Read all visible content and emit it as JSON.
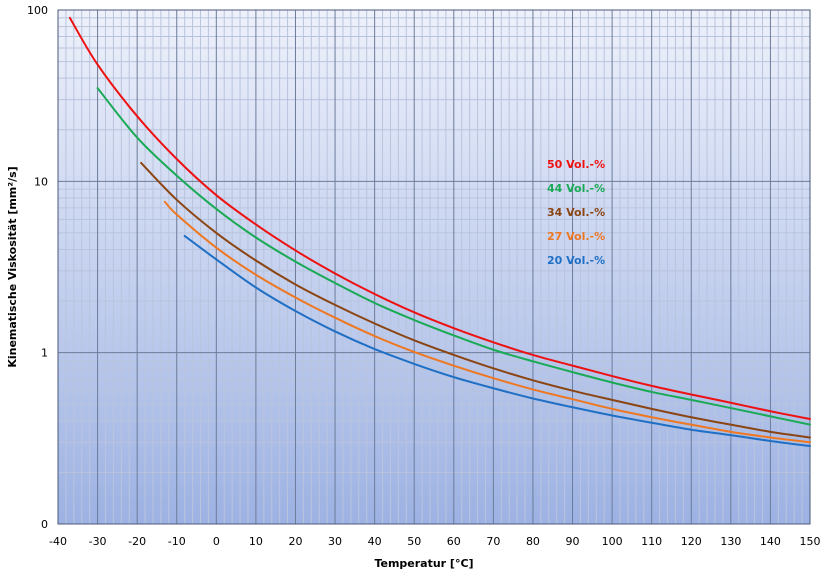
{
  "chart_data": {
    "type": "line",
    "title": "",
    "xlabel": "Temperatur [°C]",
    "ylabel": "Kinematische Viskosität [mm²/s]",
    "yscale": "log",
    "xlim": [
      -40,
      150
    ],
    "ylim": [
      0.1,
      100
    ],
    "x_ticks": [
      -40,
      -30,
      -20,
      -10,
      0,
      10,
      20,
      30,
      40,
      50,
      60,
      70,
      80,
      90,
      100,
      110,
      120,
      130,
      140,
      150
    ],
    "x_tick_labels": [
      "-40",
      "-30",
      "-20",
      "-10",
      "0",
      "10",
      "20",
      "30",
      "40",
      "50",
      "60",
      "70",
      "80",
      "90",
      "100",
      "110",
      "120",
      "130",
      "140",
      "150"
    ],
    "y_ticks": [
      0.1,
      1,
      10,
      100
    ],
    "y_tick_labels": [
      "0",
      "1",
      "10",
      "100"
    ],
    "grid": true,
    "legend_position": "right-center (inline labels)",
    "series": [
      {
        "name": "50 Vol.-%",
        "color": "#ee1111",
        "x": [
          -37,
          -30,
          -20,
          -10,
          0,
          10,
          20,
          30,
          40,
          50,
          60,
          70,
          80,
          90,
          100,
          110,
          120,
          130,
          140,
          150
        ],
        "y": [
          90,
          48,
          24,
          13.5,
          8.3,
          5.6,
          3.95,
          2.9,
          2.2,
          1.72,
          1.39,
          1.15,
          0.97,
          0.84,
          0.73,
          0.64,
          0.57,
          0.51,
          0.455,
          0.41
        ]
      },
      {
        "name": "44 Vol.-%",
        "color": "#1aaa55",
        "x": [
          -30,
          -20,
          -10,
          0,
          10,
          20,
          30,
          40,
          50,
          60,
          70,
          80,
          90,
          100,
          110,
          120,
          130,
          140,
          150
        ],
        "y": [
          35,
          18,
          10.8,
          6.9,
          4.7,
          3.4,
          2.55,
          1.95,
          1.55,
          1.26,
          1.04,
          0.89,
          0.77,
          0.67,
          0.59,
          0.53,
          0.475,
          0.425,
          0.38
        ]
      },
      {
        "name": "34 Vol.-%",
        "color": "#8b4513",
        "x": [
          -19,
          -10,
          0,
          10,
          20,
          30,
          40,
          50,
          60,
          70,
          80,
          90,
          100,
          110,
          120,
          130,
          140,
          150
        ],
        "y": [
          12.8,
          7.8,
          5.0,
          3.45,
          2.5,
          1.9,
          1.48,
          1.18,
          0.97,
          0.81,
          0.69,
          0.6,
          0.53,
          0.47,
          0.42,
          0.38,
          0.345,
          0.32
        ]
      },
      {
        "name": "27 Vol.-%",
        "color": "#ee7722",
        "x": [
          -13,
          -10,
          0,
          10,
          20,
          30,
          40,
          50,
          60,
          70,
          80,
          90,
          100,
          110,
          120,
          130,
          140,
          150
        ],
        "y": [
          7.6,
          6.4,
          4.1,
          2.85,
          2.1,
          1.6,
          1.25,
          1.01,
          0.84,
          0.71,
          0.61,
          0.535,
          0.47,
          0.42,
          0.38,
          0.345,
          0.32,
          0.3
        ]
      },
      {
        "name": "20 Vol.-%",
        "color": "#1f6fc5",
        "x": [
          -8,
          0,
          10,
          20,
          30,
          40,
          50,
          60,
          70,
          80,
          90,
          100,
          110,
          120,
          130,
          140,
          150
        ],
        "y": [
          4.8,
          3.5,
          2.4,
          1.75,
          1.33,
          1.05,
          0.86,
          0.72,
          0.62,
          0.54,
          0.48,
          0.43,
          0.39,
          0.355,
          0.33,
          0.305,
          0.285
        ]
      }
    ],
    "legend": [
      {
        "label": "50 Vol.-%",
        "color": "#ee1111"
      },
      {
        "label": "44 Vol.-%",
        "color": "#1aaa55"
      },
      {
        "label": "34 Vol.-%",
        "color": "#8b4513"
      },
      {
        "label": "27 Vol.-%",
        "color": "#ee7722"
      },
      {
        "label": "20 Vol.-%",
        "color": "#1f6fc5"
      }
    ]
  }
}
